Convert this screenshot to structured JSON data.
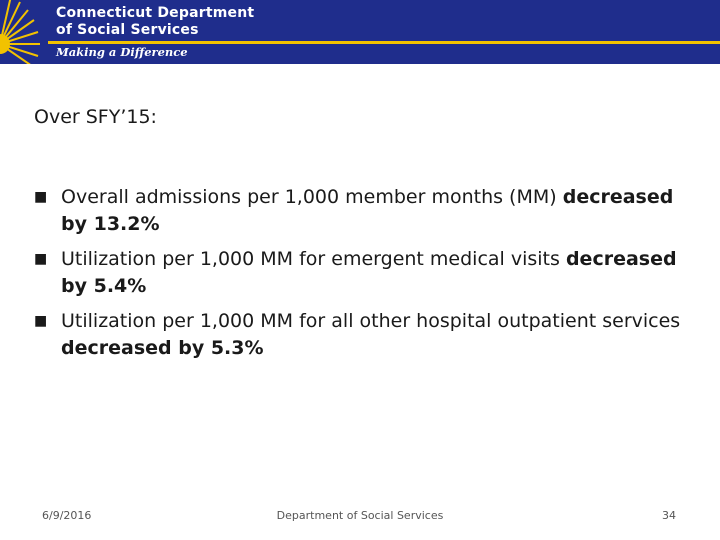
{
  "header": {
    "org_line1": "Connecticut Department",
    "org_line2": "of Social Services",
    "tagline": "Making a Difference",
    "colors": {
      "banner": "#1f2d8c",
      "accent": "#f2c200"
    }
  },
  "intro": "Over SFY’15:",
  "bullets": [
    {
      "text": "Overall admissions per 1,000 member months (MM) ",
      "bold": "decreased by 13.2%"
    },
    {
      "text": "Utilization per 1,000 MM for emergent medical visits ",
      "bold": "decreased by 5.4%"
    },
    {
      "text": "Utilization per 1,000 MM for all other hospital outpatient services ",
      "bold": "decreased by 5.3%"
    }
  ],
  "bullet_icon": "square-bullet-icon",
  "footer": {
    "date": "6/9/2016",
    "center": "Department of Social Services",
    "page": "34"
  }
}
